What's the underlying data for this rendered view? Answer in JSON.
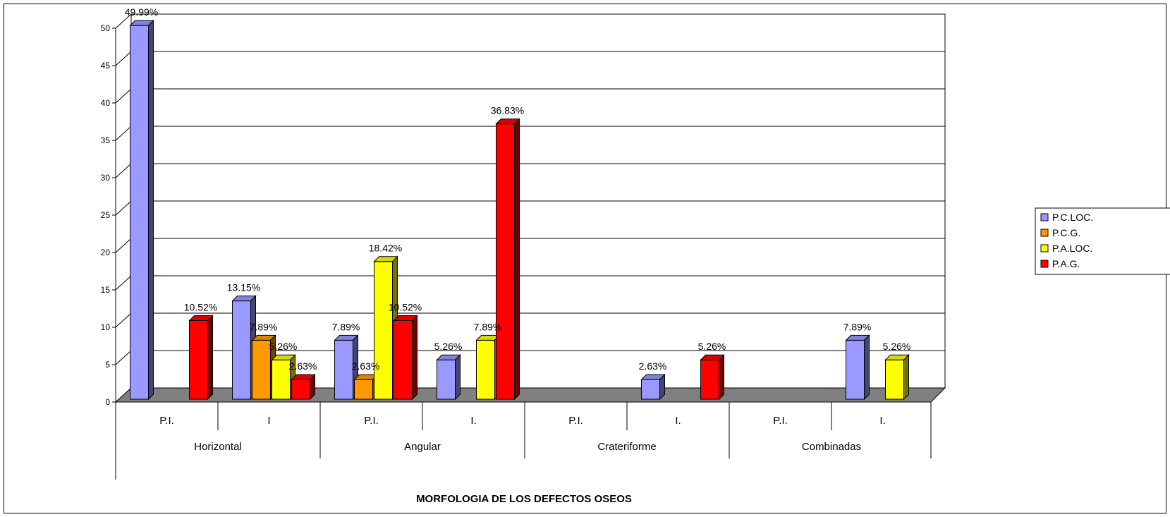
{
  "chart_data": {
    "type": "bar",
    "title": "",
    "xlabel": "MORFOLOGIA DE LOS DEFECTOS OSEOS",
    "ylabel": "",
    "ylim": [
      0,
      50
    ],
    "yticks": [
      "0",
      "5",
      "10",
      "15",
      "20",
      "25",
      "30",
      "35",
      "40",
      "45",
      "50"
    ],
    "grid": true,
    "legend_position": "right",
    "groups": [
      "Horizontal",
      "Angular",
      "Crateriforme",
      "Combinadas"
    ],
    "categories": [
      "P.I.",
      "I",
      "P.I.",
      "I.",
      "P.I.",
      "I.",
      "P.I.",
      "I."
    ],
    "series": [
      {
        "name": "P.C.LOC.",
        "color": "#9999ff",
        "values": [
          49.99,
          13.15,
          7.89,
          5.26,
          0,
          2.63,
          0,
          7.89
        ],
        "labels": [
          "49.99%",
          "13.15%",
          "7.89%",
          "5.26%",
          "",
          "2.63%",
          "",
          "7.89%"
        ]
      },
      {
        "name": "P.C.G.",
        "color": "#ff9900",
        "values": [
          0,
          7.89,
          2.63,
          0,
          0,
          0,
          0,
          0
        ],
        "labels": [
          "",
          "7.89%",
          "2.63%",
          "",
          "",
          "",
          "",
          ""
        ]
      },
      {
        "name": "P.A.LOC.",
        "color": "#ffff00",
        "values": [
          0,
          5.26,
          18.42,
          7.89,
          0,
          0,
          0,
          5.26
        ],
        "labels": [
          "",
          "5.26%",
          "18.42%",
          "7.89%",
          "",
          "",
          "",
          "5.26%"
        ]
      },
      {
        "name": "P.A.G.",
        "color": "#ff0000",
        "values": [
          10.52,
          2.63,
          10.52,
          36.83,
          0,
          5.26,
          0,
          0
        ],
        "labels": [
          "10.52%",
          "2.63%",
          "10.52%",
          "36.83%",
          "",
          "5.26%",
          "",
          ""
        ]
      }
    ],
    "floor_color": "#808080"
  }
}
